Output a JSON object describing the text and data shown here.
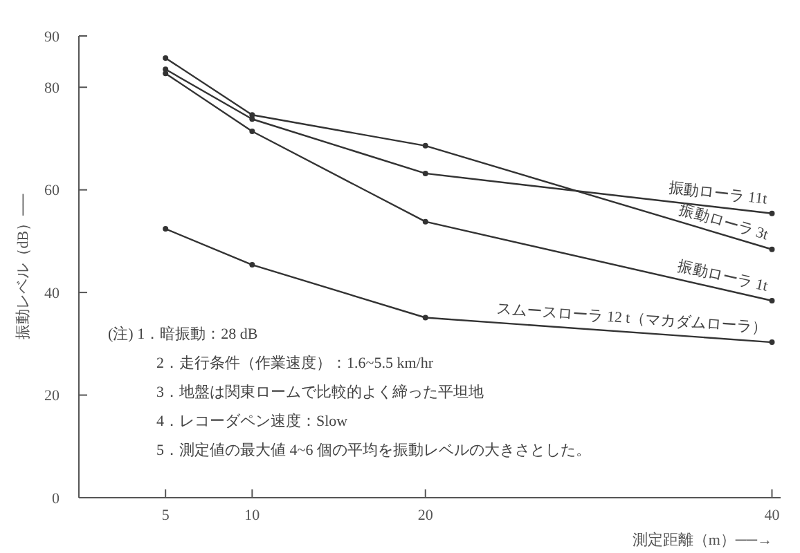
{
  "chart_data": {
    "type": "line",
    "xlabel": "測定距離（m）──→",
    "ylabel": "振動レベル（dB）──",
    "x": [
      5,
      10,
      20,
      40
    ],
    "xlim": [
      0,
      40.5
    ],
    "ylim": [
      0,
      90
    ],
    "xticks": [
      5,
      10,
      20,
      40
    ],
    "yticks": [
      0,
      20,
      40,
      60,
      80,
      90
    ],
    "marker": "circle",
    "grid": false,
    "line_style": "solid",
    "series": [
      {
        "name": "振動ローラ 11t",
        "color": "#333333",
        "values": [
          83.5,
          73.8,
          63.2,
          55.4
        ]
      },
      {
        "name": "振動ローラ 3t",
        "color": "#333333",
        "values": [
          85.7,
          74.6,
          68.6,
          48.4
        ]
      },
      {
        "name": "振動ローラ 1t",
        "color": "#333333",
        "values": [
          82.7,
          71.4,
          53.8,
          38.4
        ]
      },
      {
        "name": "スムースローラ 12 t（マカダムローラ）",
        "color": "#333333",
        "values": [
          52.4,
          45.4,
          35.1,
          30.3
        ]
      }
    ],
    "annotations": [
      "(注) 1．暗振動：28 dB",
      "2．走行条件（作業速度）：1.6~5.5 km/hr",
      "3．地盤は関東ロームで比較的よく締った平坦地",
      "4．レコーダペン速度：Slow",
      "5．測定値の最大値 4~6 個の平均を振動レベルの大きさとした。"
    ]
  }
}
